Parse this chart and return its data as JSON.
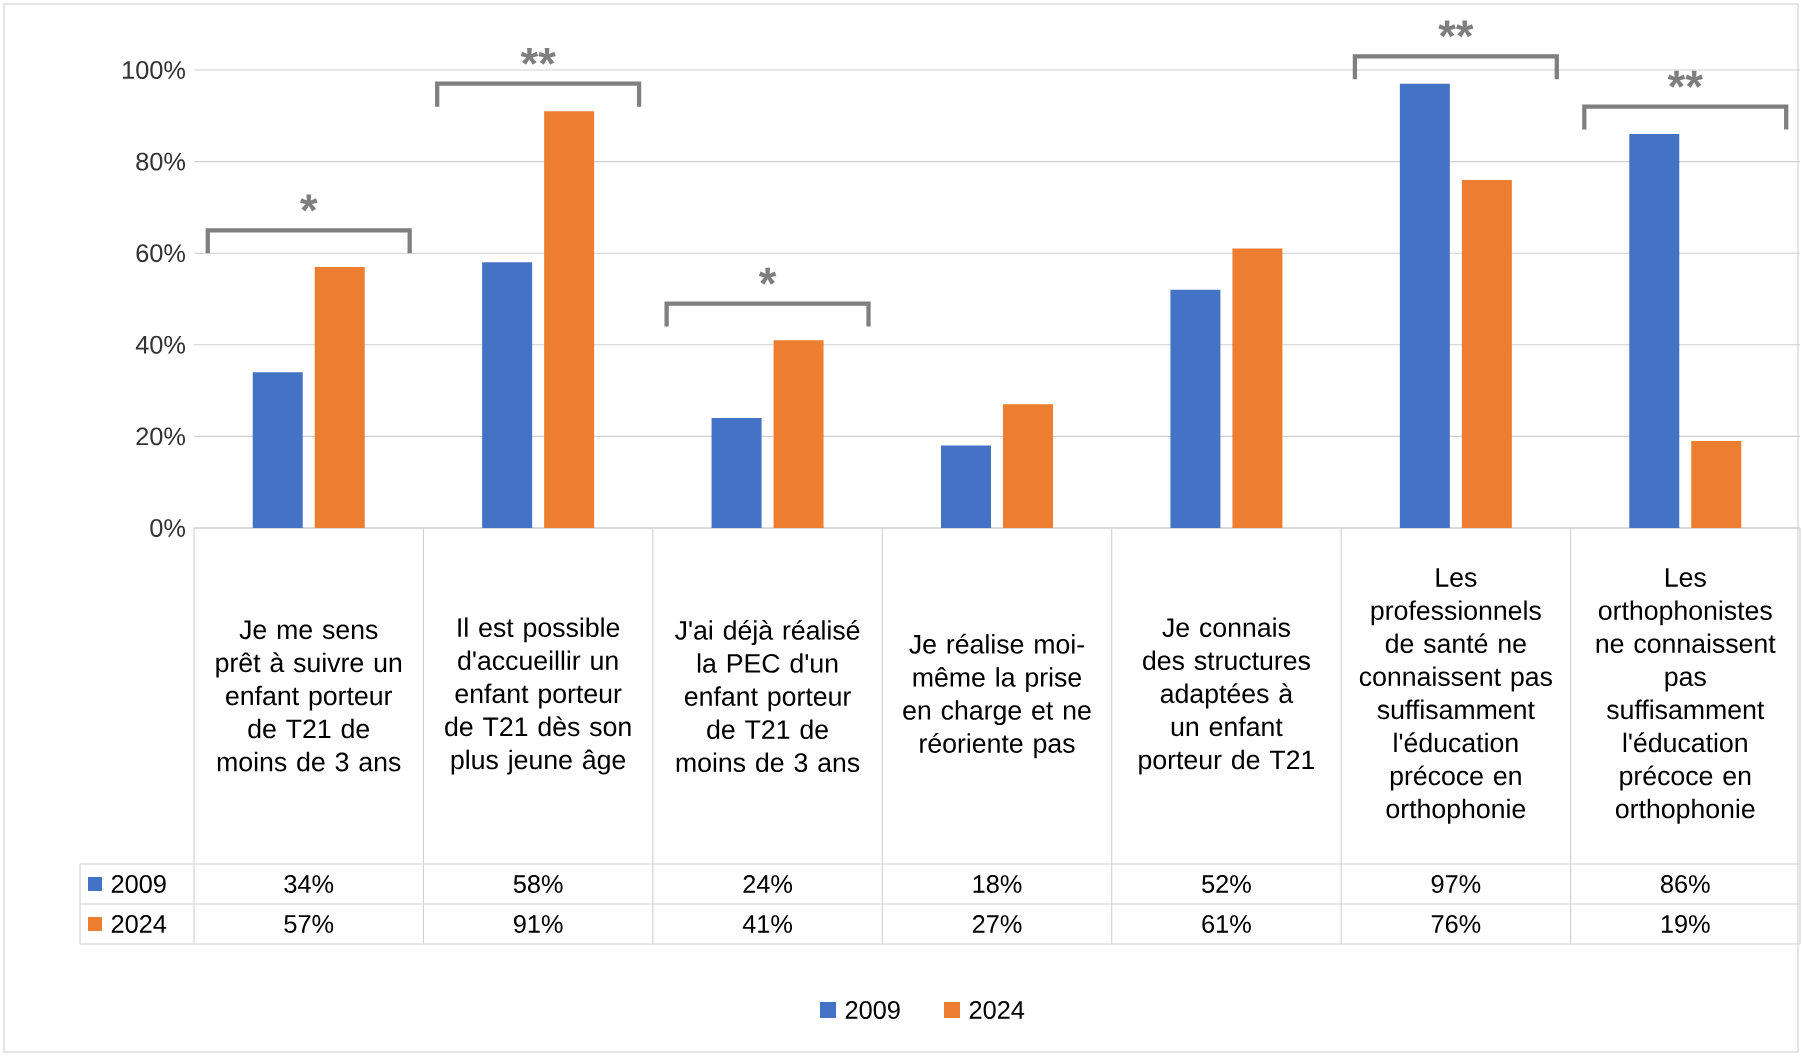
{
  "chart_data": {
    "type": "bar",
    "categories": [
      "Je me sens prêt à suivre un enfant porteur de T21 de moins de 3 ans",
      "Il est possible d'accueillir un enfant porteur de T21 dès son plus jeune âge",
      "J'ai déjà réalisé la PEC d'un enfant porteur de T21 de moins de 3 ans",
      "Je réalise moi-même la prise en charge et ne réoriente pas",
      "Je connais des structures adaptées à un enfant porteur de T21",
      "Les professionnels de santé ne connaissent pas suffisamment l'éducation précoce en orthophonie",
      "Les orthophonistes ne connaissent pas suffisamment l'éducation précoce en orthophonie"
    ],
    "series": [
      {
        "name": "2009",
        "color": "#4472c4",
        "values": [
          34,
          58,
          24,
          18,
          52,
          97,
          86
        ],
        "value_labels": [
          "34%",
          "58%",
          "24%",
          "18%",
          "52%",
          "97%",
          "86%"
        ]
      },
      {
        "name": "2024",
        "color": "#ed7d31",
        "values": [
          57,
          91,
          41,
          27,
          61,
          76,
          19
        ],
        "value_labels": [
          "57%",
          "91%",
          "41%",
          "27%",
          "61%",
          "76%",
          "19%"
        ]
      }
    ],
    "ylim": [
      0,
      100
    ],
    "yticks": [
      {
        "value": 0,
        "label": "0%"
      },
      {
        "value": 20,
        "label": "20%"
      },
      {
        "value": 40,
        "label": "40%"
      },
      {
        "value": 60,
        "label": "60%"
      },
      {
        "value": 80,
        "label": "80%"
      },
      {
        "value": 100,
        "label": "100%"
      }
    ],
    "grid": "y",
    "legend": "bottom",
    "annotations": [
      {
        "text": "*",
        "x": "Je me sens prêt à suivre un enfant porteur de T21 de moins de 3 ans",
        "y": 57
      },
      {
        "text": "**",
        "x": "Il est possible d'accueillir un enfant porteur de T21 dès son plus jeune âge",
        "y": 91
      },
      {
        "text": "*",
        "x": "J'ai déjà réalisé la PEC d'un enfant porteur de T21 de moins de 3 ans",
        "y": 41
      },
      {
        "text": "**",
        "x": "Les professionnels de santé ne connaissent pas suffisamment l'éducation précoce en orthophonie",
        "y": 97
      },
      {
        "text": "**",
        "x": "Les orthophonistes ne connaissent pas suffisamment l'éducation précoce en orthophonie",
        "y": 86
      }
    ]
  }
}
